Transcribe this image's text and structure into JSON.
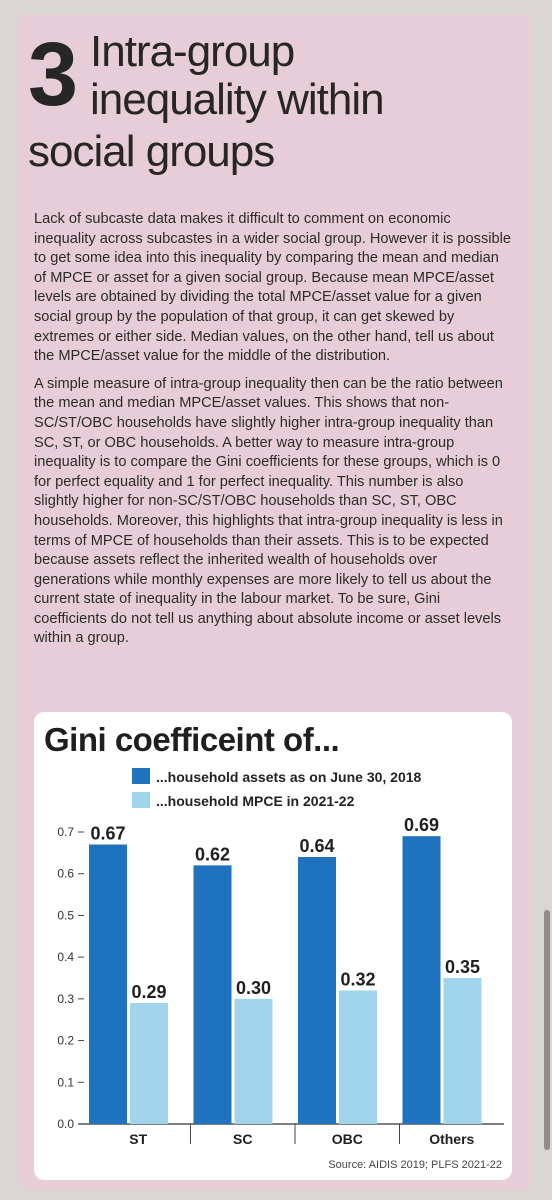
{
  "headline": {
    "number": "3",
    "lines": [
      "Intra-group",
      "inequality within",
      "social groups"
    ]
  },
  "body": {
    "paragraphs": [
      "Lack of subcaste data makes it difficult to comment on economic inequality across subcastes in a wider social group. However it is possible to get some idea into this inequality by comparing the mean and median of MPCE or asset for a given social group. Because mean MPCE/asset levels are obtained by dividing the total MPCE/asset value for a given social group by the population of that group, it can get skewed by extremes or either side. Median values, on the other hand, tell us about the MPCE/asset value for the middle of the distribution.",
      "A simple measure of intra-group inequality then can be the ratio between the mean and median MPCE/asset values. This shows that non-SC/ST/OBC households have slightly higher intra-group inequality than SC, ST, or OBC households. A better way to measure intra-group inequality is to compare the Gini coefficients for these groups, which is 0 for perfect equality and 1 for perfect inequality. This number is also slightly higher for non-SC/ST/OBC households than SC, ST, OBC households. Moreover, this highlights that intra-group inequality is less in terms of MPCE of households than their assets. This is to be expected because assets reflect the inherited wealth of households over generations while monthly expenses are more likely to tell us about the current state of inequality in the labour market. To be sure, Gini coefficients do not tell us anything about absolute income or asset levels within a group."
    ]
  },
  "colors": {
    "card_background": "#e7cdd8",
    "assets_series": "#1f72bd",
    "mpce_series": "#9fd4ea"
  },
  "chart_data": {
    "type": "bar",
    "title": "Gini coefficeint of...",
    "categories": [
      "ST",
      "SC",
      "OBC",
      "Others"
    ],
    "series": [
      {
        "name": "...household assets as on June 30, 2018",
        "values": [
          0.67,
          0.62,
          0.64,
          0.69
        ],
        "color": "#1f72bd"
      },
      {
        "name": "...household MPCE in 2021-22",
        "values": [
          0.29,
          0.3,
          0.32,
          0.35
        ],
        "color": "#9fd4ea"
      }
    ],
    "data_labels": [
      [
        "0.67",
        "0.62",
        "0.64",
        "0.69"
      ],
      [
        "0.29",
        "0.30",
        "0.32",
        "0.35"
      ]
    ],
    "ylim": [
      0,
      0.7
    ],
    "yticks": [
      "0.0",
      "0.1",
      "0.2",
      "0.3",
      "0.4",
      "0.5",
      "0.6",
      "0.7"
    ],
    "grid": false,
    "legend_position": "top",
    "source": "Source: AIDIS 2019; PLFS 2021-22"
  }
}
